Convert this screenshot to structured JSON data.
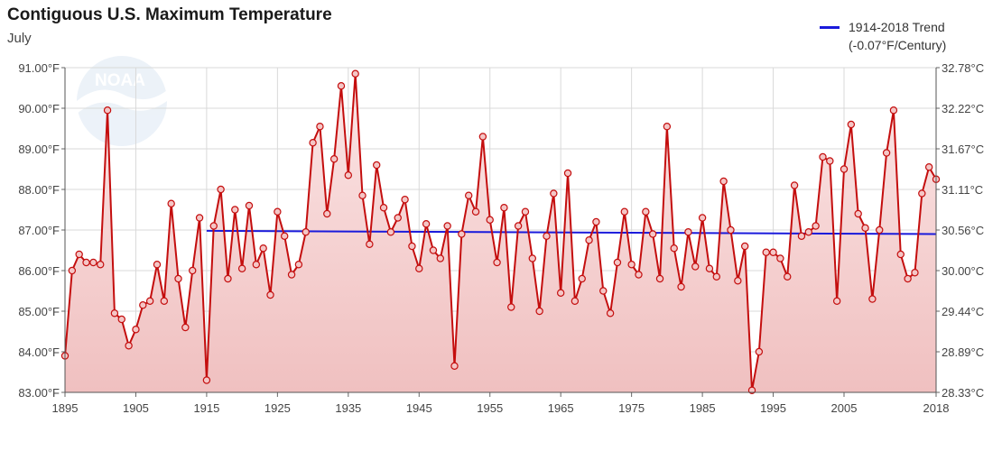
{
  "header": {
    "title": "Contiguous U.S. Maximum Temperature",
    "subtitle": "July"
  },
  "legend": {
    "line1": "1914-2018 Trend",
    "line2": "(-0.07°F/Century)",
    "color": "#1a1adb"
  },
  "watermark": {
    "text": "NOAA",
    "icon": "noaa-logo-icon"
  },
  "colors": {
    "series": "#c40e0e",
    "point_fill": "#f4c6c6",
    "area_top": "#fbe6e6",
    "area_bottom": "#f0c0c0",
    "grid": "#d9d9d9"
  },
  "chart_data": {
    "type": "line",
    "title": "Contiguous U.S. Maximum Temperature",
    "subtitle": "July",
    "xlabel": "",
    "ylabel": "",
    "xlim": [
      1895,
      2018
    ],
    "ylim": [
      83,
      91
    ],
    "x_ticks": [
      1895,
      1905,
      1915,
      1925,
      1935,
      1945,
      1955,
      1965,
      1975,
      1985,
      1995,
      2005,
      2018
    ],
    "y_ticks_left": [
      "83.00°F",
      "84.00°F",
      "85.00°F",
      "86.00°F",
      "87.00°F",
      "88.00°F",
      "89.00°F",
      "90.00°F",
      "91.00°F"
    ],
    "y_ticks_right": [
      "28.33°C",
      "28.89°C",
      "29.44°C",
      "30.00°C",
      "30.56°C",
      "31.11°C",
      "31.67°C",
      "32.22°C",
      "32.78°C"
    ],
    "grid": true,
    "legend_position": "top-right",
    "series": [
      {
        "name": "",
        "start_year": 1895,
        "values": [
          83.9,
          86.0,
          86.4,
          86.2,
          86.2,
          86.15,
          89.95,
          84.95,
          84.8,
          84.15,
          84.55,
          85.15,
          85.25,
          86.15,
          85.25,
          87.65,
          85.8,
          84.6,
          86.0,
          87.3,
          83.3,
          87.1,
          88.0,
          85.8,
          87.5,
          86.05,
          87.6,
          86.15,
          86.55,
          85.4,
          87.45,
          86.85,
          85.9,
          86.15,
          86.95,
          89.15,
          89.55,
          87.4,
          88.75,
          90.55,
          88.35,
          90.85,
          87.85,
          86.65,
          88.6,
          87.55,
          86.95,
          87.3,
          87.75,
          86.6,
          86.05,
          87.15,
          86.5,
          86.3,
          87.1,
          83.65,
          86.9,
          87.85,
          87.45,
          89.3,
          87.25,
          86.2,
          87.55,
          85.1,
          87.1,
          87.45,
          86.3,
          85.0,
          86.85,
          87.9,
          85.45,
          88.4,
          85.25,
          85.8,
          86.75,
          87.2,
          85.5,
          84.95,
          86.2,
          87.45,
          86.15,
          85.9,
          87.45,
          86.9,
          85.8,
          89.55,
          86.55,
          85.6,
          86.95,
          86.1,
          87.3,
          86.05,
          85.85,
          88.2,
          87.0,
          85.75,
          86.6,
          83.05,
          84.0,
          86.45,
          86.45,
          86.3,
          85.85,
          88.1,
          86.85,
          86.95,
          87.1,
          88.8,
          88.7,
          85.25,
          88.5,
          89.6,
          87.4,
          87.05,
          85.3,
          87.0,
          88.9,
          89.95,
          86.4,
          85.8,
          85.95,
          87.9,
          88.55,
          88.25
        ]
      }
    ],
    "trend": {
      "name": "1914-2018 Trend",
      "start": [
        1915,
        86.98
      ],
      "end": [
        2018,
        86.9
      ]
    }
  }
}
